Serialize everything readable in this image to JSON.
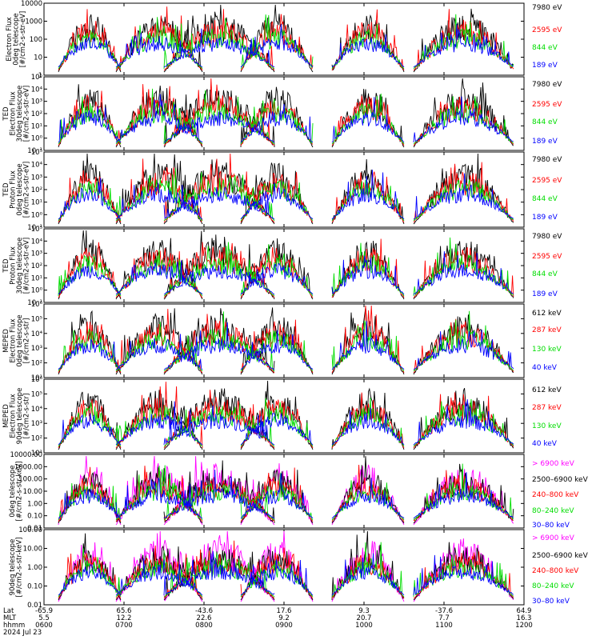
{
  "chart_data": {
    "type": "line",
    "x_axis": {
      "rows": [
        {
          "label": "Lat",
          "ticks": [
            "-65.9",
            "65.6",
            "-43.6",
            "17.6",
            "9.3",
            "-37.6",
            "64.9"
          ]
        },
        {
          "label": "MLT",
          "ticks": [
            "5.5",
            "12.2",
            "22.6",
            "9.2",
            "20.7",
            "7.7",
            "16.3"
          ]
        },
        {
          "label": "hhmm",
          "ticks": [
            "0600",
            "0700",
            "0800",
            "0900",
            "1000",
            "1100",
            "1200"
          ]
        }
      ],
      "date": "2024 Jul 23"
    },
    "panels": [
      {
        "ylabel": [
          "Electron Flux",
          "0deg telescope",
          "[#/cm2-s-str-eV]"
        ],
        "yticks": [
          "1",
          "10",
          "100",
          "1000",
          "10000"
        ],
        "ylog": [
          0,
          4
        ],
        "series": [
          {
            "name": "7980 eV",
            "color": "#000000"
          },
          {
            "name": "2595 eV",
            "color": "#ff0000"
          },
          {
            "name": "844 eV",
            "color": "#00dd00"
          },
          {
            "name": "189 eV",
            "color": "#0000ff"
          }
        ]
      },
      {
        "ylabel": [
          "TED",
          "Electron Flux",
          "30deg telescope",
          "[#/cm2-s-str-eV]"
        ],
        "yticks": [
          "10⁻¹",
          "10⁰",
          "10¹",
          "10²",
          "10³",
          "10⁴",
          "10⁵"
        ],
        "ylog": [
          -1,
          5
        ],
        "series": [
          {
            "name": "7980 eV",
            "color": "#000000"
          },
          {
            "name": "2595 eV",
            "color": "#ff0000"
          },
          {
            "name": "844 eV",
            "color": "#00dd00"
          },
          {
            "name": "189 eV",
            "color": "#0000ff"
          }
        ]
      },
      {
        "ylabel": [
          "TED",
          "Proton Flux",
          "0deg telescope",
          "[#/cm2-s-str-eV]"
        ],
        "yticks": [
          "10⁻¹",
          "10⁰",
          "10¹",
          "10²",
          "10³",
          "10⁴",
          "10⁵"
        ],
        "ylog": [
          -1,
          5
        ],
        "series": [
          {
            "name": "7980 eV",
            "color": "#000000"
          },
          {
            "name": "2595 eV",
            "color": "#ff0000"
          },
          {
            "name": "844 eV",
            "color": "#00dd00"
          },
          {
            "name": "189 eV",
            "color": "#0000ff"
          }
        ]
      },
      {
        "ylabel": [
          "TED",
          "Proton Flux",
          "30deg telescope",
          "[#/cm2-s-str-eV]"
        ],
        "yticks": [
          "10⁻¹",
          "10⁰",
          "10¹",
          "10²",
          "10³",
          "10⁴",
          "10⁵"
        ],
        "ylog": [
          -1,
          5
        ],
        "series": [
          {
            "name": "7980 eV",
            "color": "#000000"
          },
          {
            "name": "2595 eV",
            "color": "#ff0000"
          },
          {
            "name": "844 eV",
            "color": "#00dd00"
          },
          {
            "name": "189 eV",
            "color": "#0000ff"
          }
        ]
      },
      {
        "ylabel": [
          "MEPED",
          "Electron Flux",
          "0deg telescope",
          "[#/cm2-s-str]"
        ],
        "yticks": [
          "10¹",
          "10²",
          "10³",
          "10⁴",
          "10⁵",
          "10⁶"
        ],
        "ylog": [
          1,
          6
        ],
        "series": [
          {
            "name": "612 keV",
            "color": "#000000"
          },
          {
            "name": "287 keV",
            "color": "#ff0000"
          },
          {
            "name": "130 keV",
            "color": "#00dd00"
          },
          {
            "name": "40 keV",
            "color": "#0000ff"
          }
        ]
      },
      {
        "ylabel": [
          "MEPED",
          "Electron Flux",
          "90deg telescope",
          "[#/cm2-s-str]"
        ],
        "yticks": [
          "10¹",
          "10²",
          "10³",
          "10⁴",
          "10⁵",
          "10⁶"
        ],
        "ylog": [
          1,
          6
        ],
        "series": [
          {
            "name": "612 keV",
            "color": "#000000"
          },
          {
            "name": "287 keV",
            "color": "#ff0000"
          },
          {
            "name": "130 keV",
            "color": "#00dd00"
          },
          {
            "name": "40 keV",
            "color": "#0000ff"
          }
        ]
      },
      {
        "ylabel": [
          "0deg telescope",
          "[#/cm2-s-str-keV]"
        ],
        "yticks": [
          "0.01",
          "0.10",
          "1.00",
          "10.00",
          "100.00",
          "1000.00",
          "10000.00"
        ],
        "ylog": [
          -2,
          4
        ],
        "series": [
          {
            "name": "> 6900 keV",
            "color": "#ff00ff"
          },
          {
            "name": "2500–6900 keV",
            "color": "#000000"
          },
          {
            "name": "240–800 keV",
            "color": "#ff0000"
          },
          {
            "name": "80–240 keV",
            "color": "#00dd00"
          },
          {
            "name": "30–80 keV",
            "color": "#0000ff"
          }
        ]
      },
      {
        "ylabel": [
          "90deg telescope",
          "[#/cm2-s-str-keV]"
        ],
        "yticks": [
          "0.01",
          "0.10",
          "1.00",
          "10.00",
          "100.00"
        ],
        "ylog": [
          -2,
          3
        ],
        "series": [
          {
            "name": "> 6900 keV",
            "color": "#ff00ff"
          },
          {
            "name": "2500–6900 keV",
            "color": "#000000"
          },
          {
            "name": "240–800 keV",
            "color": "#ff0000"
          },
          {
            "name": "80–240 keV",
            "color": "#00dd00"
          },
          {
            "name": "30–80 keV",
            "color": "#0000ff"
          }
        ]
      }
    ]
  }
}
